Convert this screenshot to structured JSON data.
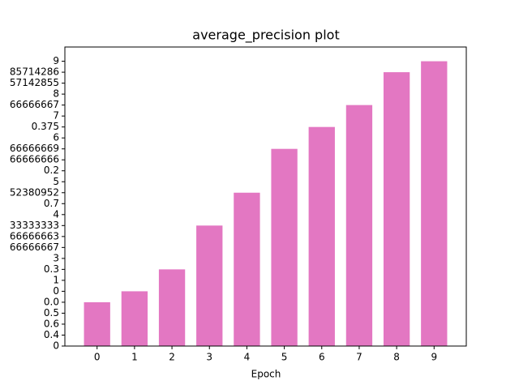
{
  "chart_data": {
    "type": "bar",
    "title": "average_precision plot",
    "x_label": "Epoch",
    "x": [
      0,
      1,
      2,
      3,
      4,
      5,
      6,
      7,
      8,
      9
    ],
    "values": [
      4,
      5,
      7,
      11,
      14,
      18,
      20,
      22,
      25,
      26
    ],
    "color": "#e377c2",
    "xlim": [
      -0.86,
      9.86
    ],
    "xticks": [
      0,
      1,
      2,
      3,
      4,
      5,
      6,
      7,
      8,
      9
    ],
    "ylim": [
      0,
      27.3
    ],
    "yticks": [
      {
        "value": 0,
        "label": "0"
      },
      {
        "value": 1,
        "label": "0.4"
      },
      {
        "value": 2,
        "label": "0.6"
      },
      {
        "value": 3,
        "label": "0.5"
      },
      {
        "value": 4,
        "label": "0.0"
      },
      {
        "value": 5,
        "label": "0"
      },
      {
        "value": 6,
        "label": "1"
      },
      {
        "value": 7,
        "label": "0.3"
      },
      {
        "value": 8,
        "label": "3"
      },
      {
        "value": 9,
        "label": "66666667"
      },
      {
        "value": 10,
        "label": "66666663"
      },
      {
        "value": 11,
        "label": "33333333"
      },
      {
        "value": 12,
        "label": "4"
      },
      {
        "value": 13,
        "label": "0.7"
      },
      {
        "value": 14,
        "label": "52380952"
      },
      {
        "value": 15,
        "label": "5"
      },
      {
        "value": 16,
        "label": "0.2"
      },
      {
        "value": 17,
        "label": "66666666"
      },
      {
        "value": 18,
        "label": "66666669"
      },
      {
        "value": 19,
        "label": "6"
      },
      {
        "value": 20,
        "label": "0.375"
      },
      {
        "value": 21,
        "label": "7"
      },
      {
        "value": 22,
        "label": "66666667"
      },
      {
        "value": 23,
        "label": "8"
      },
      {
        "value": 24,
        "label": "57142855"
      },
      {
        "value": 25,
        "label": "85714286"
      },
      {
        "value": 26,
        "label": "9"
      }
    ],
    "grid": false
  }
}
